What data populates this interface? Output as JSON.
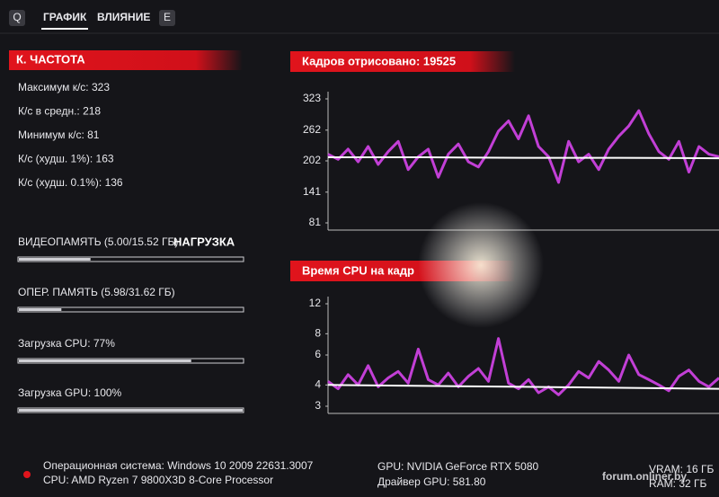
{
  "tabs": {
    "prev_key": "Q",
    "items": [
      "ГРАФИК",
      "ВЛИЯНИЕ"
    ],
    "next_key": "E"
  },
  "fps_panel": {
    "title": "К. ЧАСТОТА",
    "stats": [
      "Максимум к/с: 323",
      "К/с в средн.: 218",
      "Минимум к/с: 81",
      "К/с (худш. 1%): 163",
      "К/с (худш. 0.1%): 136"
    ]
  },
  "load_panel": {
    "title": "НАГРУЗКА",
    "bars": [
      {
        "label": "ВИДЕОПАМЯТЬ (5.00/15.52 ГБ)",
        "value": 32
      },
      {
        "label": "ОПЕР. ПАМЯТЬ (5.98/31.62 ГБ)",
        "value": 19
      },
      {
        "label": "Загрузка CPU: 77%",
        "value": 77
      },
      {
        "label": "Загрузка GPU: 100%",
        "value": 100
      }
    ]
  },
  "chart_data": [
    {
      "type": "line",
      "title": "Кадров отрисовано: 19525",
      "ylim": [
        81,
        323
      ],
      "yticks": [
        323,
        262,
        202,
        141,
        81
      ],
      "series": [
        {
          "color": "#c23fd6",
          "values": [
            215,
            205,
            225,
            200,
            230,
            195,
            220,
            240,
            185,
            210,
            225,
            170,
            215,
            235,
            200,
            190,
            220,
            260,
            280,
            245,
            290,
            230,
            210,
            160,
            240,
            200,
            215,
            185,
            225,
            250,
            270,
            300,
            255,
            220,
            205,
            240,
            180,
            230,
            215,
            210
          ]
        },
        {
          "color": "#ffffff",
          "values": [
            209,
            209,
            208,
            208,
            207
          ]
        }
      ]
    },
    {
      "type": "line",
      "title": "Время CPU на кадр",
      "ylim": [
        3,
        12
      ],
      "yticks": [
        12,
        8,
        6,
        4,
        3
      ],
      "log_scale": true,
      "series": [
        {
          "color": "#c23fd6",
          "values": [
            4.2,
            3.8,
            4.6,
            4.0,
            5.2,
            3.9,
            4.4,
            4.8,
            4.1,
            6.5,
            4.3,
            4.0,
            4.7,
            3.9,
            4.5,
            5.0,
            4.2,
            7.5,
            4.1,
            3.8,
            4.3,
            3.6,
            3.9,
            3.5,
            4.0,
            4.8,
            4.4,
            5.5,
            4.9,
            4.2,
            6.0,
            4.6,
            4.3,
            4.0,
            3.7,
            4.5,
            4.9,
            4.2,
            3.9,
            4.4
          ]
        },
        {
          "color": "#ffffff",
          "values": [
            4.0,
            3.95,
            3.9,
            3.85,
            3.8
          ]
        }
      ]
    }
  ],
  "system_info": {
    "os": "Операционная система: Windows 10 2009 22631.3007",
    "cpu": "CPU: AMD Ryzen 7 9800X3D 8-Core Processor",
    "gpu": "GPU: NVIDIA GeForce RTX 5080",
    "driver": "Драйвер GPU: 581.80",
    "vram": "VRAM: 16 ГБ",
    "ram": "RAM: 32 ГБ"
  },
  "watermark": "forum.onliner.by"
}
